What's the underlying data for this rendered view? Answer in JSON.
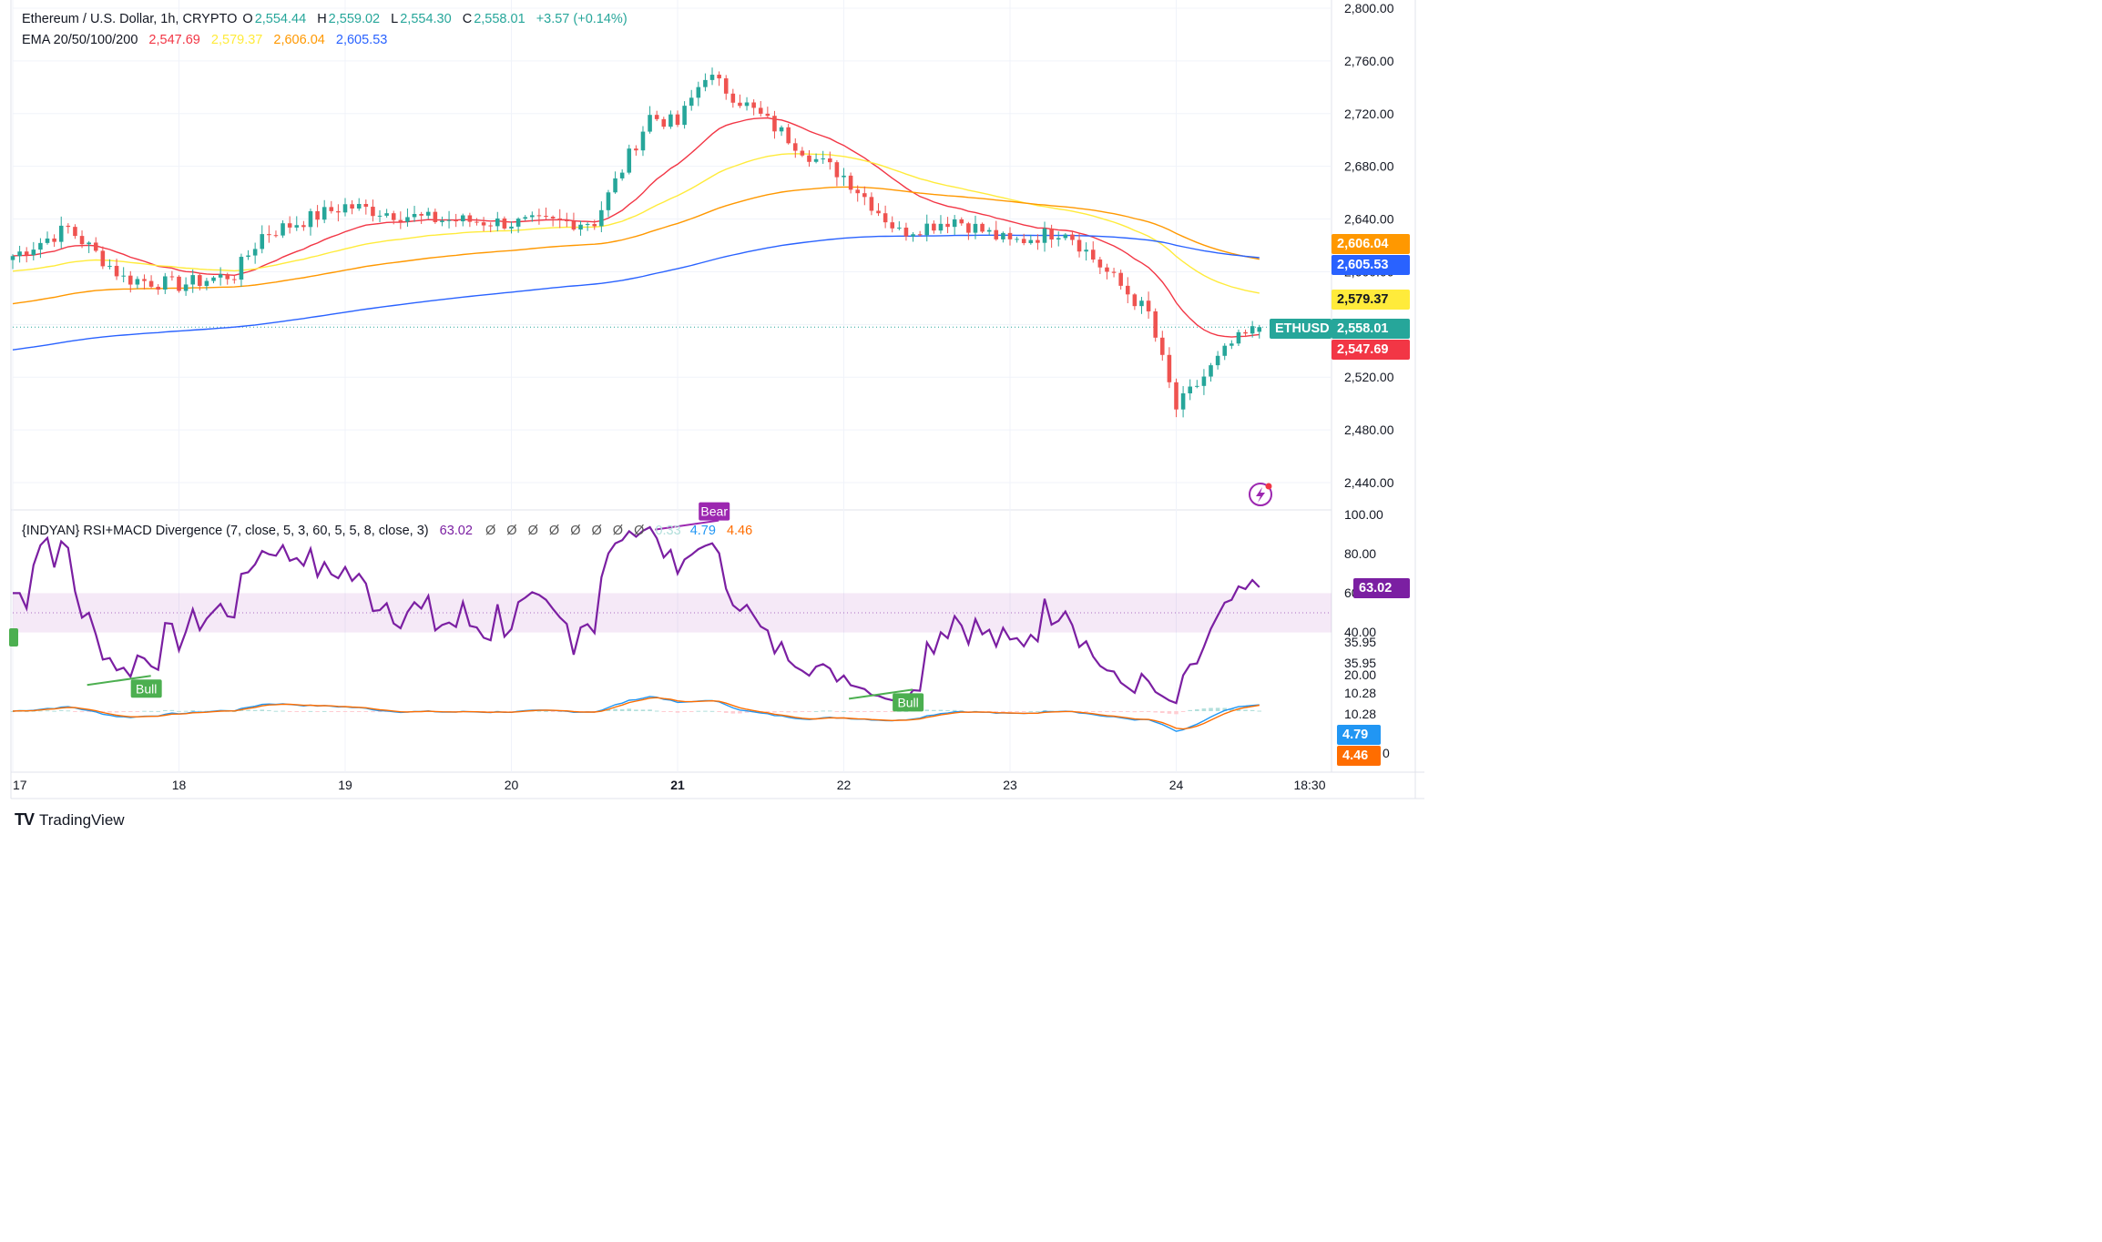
{
  "header": {
    "symbol": "Ethereum / U.S. Dollar, 1h, CRYPTO",
    "o_label": "O",
    "o_value": "2,554.44",
    "h_label": "H",
    "h_value": "2,559.02",
    "l_label": "L",
    "l_value": "2,554.30",
    "c_label": "C",
    "c_value": "2,558.01",
    "change": "+3.57 (+0.14%)",
    "ema_title": "EMA 20/50/100/200",
    "ema20": "2,547.69",
    "ema50": "2,579.37",
    "ema100": "2,606.04",
    "ema200": "2,605.53",
    "indicator_title": "{INDYAN} RSI+MACD Divergence (7, close, 5, 3, 60, 5, 5, 8, close, 3)",
    "indicator_rsi": "63.02",
    "indicator_nulls": "Ø Ø Ø Ø Ø Ø Ø Ø",
    "indicator_hidden": "0.33",
    "indicator_macd": "4.79",
    "indicator_signal": "4.46"
  },
  "colors": {
    "up": "#26a69a",
    "down": "#ef5350",
    "ema20": "#f23645",
    "ema50": "#ffeb3b",
    "ema100": "#ff9800",
    "ema200": "#2962ff",
    "rsi": "#7b1fa2",
    "macd": "#2196f3",
    "signal": "#ff6d00",
    "bull": "#4caf50",
    "bear": "#9c27b0"
  },
  "price_axis": [
    "2,800.00",
    "2,760.00",
    "2,720.00",
    "2,680.00",
    "2,640.00",
    "2,600.00",
    "2,560.00",
    "2,520.00",
    "2,480.00",
    "2,440.00"
  ],
  "indicator_axis": [
    "100.00",
    "80.00",
    "60.00",
    "40.00",
    "35.95",
    "35.95",
    "20.00",
    "10.28",
    "10.28",
    "0"
  ],
  "time_axis": [
    "17",
    "18",
    "19",
    "20",
    "21",
    "22",
    "23",
    "24",
    "18:30"
  ],
  "price_labels": {
    "ema100": "2,606.04",
    "ema200": "2,605.53",
    "ema50": "2,579.37",
    "symbol_tag": "ETHUSD",
    "last": "2,558.01",
    "ema20": "2,547.69"
  },
  "indicator_labels": {
    "rsi": "63.02",
    "macd": "4.79",
    "signal": "4.46"
  },
  "divergence_labels": {
    "bull1": "Bull",
    "bull2": "Bull",
    "bear": "Bear"
  },
  "footer": {
    "brand": "TradingView",
    "logo_text": "TV"
  },
  "chart_data": {
    "type": "candlestick",
    "title": "Ethereum / U.S. Dollar, 1h, CRYPTO",
    "timeframe": "1h",
    "x_ticks": [
      "17",
      "18",
      "19",
      "20",
      "21",
      "22",
      "23",
      "24",
      "18:30"
    ],
    "ylim": [
      2440,
      2800
    ],
    "anchor_points": [
      {
        "time": "17 00:00",
        "close": 2612
      },
      {
        "time": "17 08:00",
        "close": 2633
      },
      {
        "time": "17 16:00",
        "close": 2595
      },
      {
        "time": "18 00:00",
        "close": 2590
      },
      {
        "time": "18 08:00",
        "close": 2598
      },
      {
        "time": "18 12:00",
        "close": 2628
      },
      {
        "time": "19 00:00",
        "close": 2650
      },
      {
        "time": "19 12:00",
        "close": 2640
      },
      {
        "time": "20 00:00",
        "close": 2637
      },
      {
        "time": "20 12:00",
        "close": 2638
      },
      {
        "time": "20 20:00",
        "close": 2718
      },
      {
        "time": "21 00:00",
        "close": 2712
      },
      {
        "time": "21 04:00",
        "close": 2750
      },
      {
        "time": "21 12:00",
        "close": 2718
      },
      {
        "time": "21 20:00",
        "close": 2685
      },
      {
        "time": "22 00:00",
        "close": 2673
      },
      {
        "time": "22 08:00",
        "close": 2630
      },
      {
        "time": "22 16:00",
        "close": 2640
      },
      {
        "time": "23 00:00",
        "close": 2622
      },
      {
        "time": "23 08:00",
        "close": 2632
      },
      {
        "time": "23 12:00",
        "close": 2610
      },
      {
        "time": "23 20:00",
        "close": 2568
      },
      {
        "time": "24 00:00",
        "close": 2496
      },
      {
        "time": "24 08:00",
        "close": 2545
      },
      {
        "time": "24 12:00",
        "close": 2558
      }
    ],
    "last": {
      "open": 2554.44,
      "high": 2559.02,
      "low": 2554.3,
      "close": 2558.01,
      "change": 3.57,
      "change_pct": 0.14
    },
    "ema": {
      "ema20": 2547.69,
      "ema50": 2579.37,
      "ema100": 2606.04,
      "ema200": 2605.53
    },
    "indicator": {
      "name": "RSI+MACD Divergence",
      "rsi_last": 63.02,
      "macd_last": 4.79,
      "signal_last": 4.46,
      "rsi_band": [
        40,
        60
      ],
      "divergences": [
        {
          "type": "Bull",
          "time": "17 16:00"
        },
        {
          "type": "Bear",
          "time": "21 02:00"
        },
        {
          "type": "Bull",
          "time": "22 06:00"
        }
      ]
    }
  }
}
